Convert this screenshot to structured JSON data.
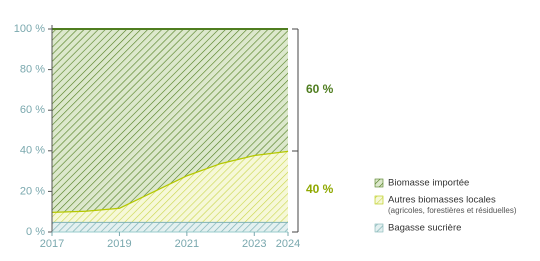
{
  "chart_data": {
    "type": "stacked-area",
    "x": [
      2017,
      2018,
      2019,
      2020,
      2021,
      2022,
      2023,
      2024
    ],
    "series": [
      {
        "name": "Bagasse sucrière",
        "color": "#7fb3b5",
        "values": [
          5,
          5,
          5,
          5,
          5,
          5,
          5,
          5
        ]
      },
      {
        "name": "Autres biomasses locales",
        "subtitle": "(agricoles, forestières et résiduelles)",
        "color": "#b5c800",
        "values": [
          5,
          5.5,
          7,
          15,
          23,
          29,
          33,
          35
        ]
      },
      {
        "name": "Biomasse importée",
        "color": "#4f7d1f",
        "values": [
          90,
          89.5,
          88,
          80,
          72,
          66,
          62,
          60
        ]
      }
    ],
    "annotations": [
      {
        "text": "60 %",
        "color": "#4f7d1f"
      },
      {
        "text": "40 %",
        "color": "#8fa800"
      }
    ],
    "xlim": [
      2017,
      2024
    ],
    "xticks": [
      2017,
      2019,
      2021,
      2023,
      2024
    ],
    "ylim": [
      0,
      100
    ],
    "yticks": [
      {
        "value": 0,
        "label": "0 %"
      },
      {
        "value": 20,
        "label": "20 %"
      },
      {
        "value": 40,
        "label": "40 %"
      },
      {
        "value": 60,
        "label": "60 %"
      },
      {
        "value": 80,
        "label": "80 %"
      },
      {
        "value": 100,
        "label": "100 %"
      }
    ]
  }
}
